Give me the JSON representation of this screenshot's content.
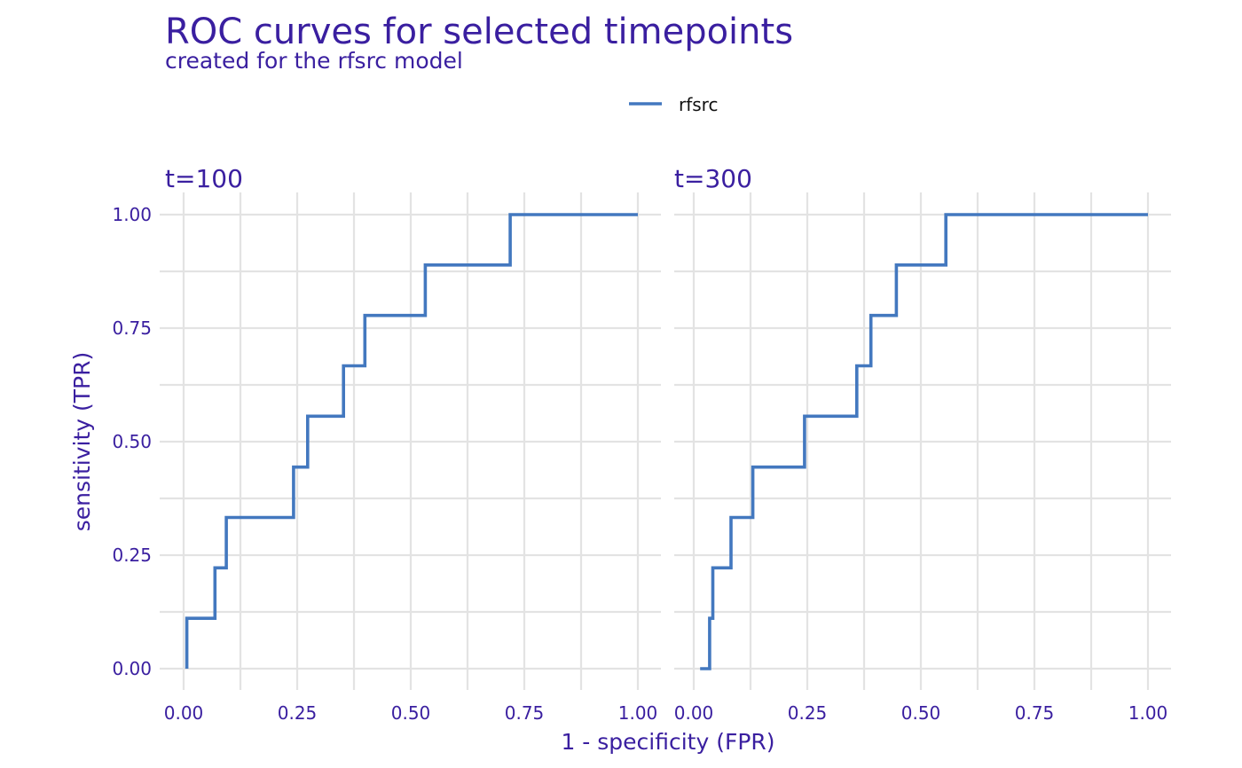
{
  "chart_data": {
    "type": "line",
    "title": "ROC curves for selected timepoints",
    "subtitle": "created for the rfsrc model",
    "xlabel": "1 - specificity (FPR)",
    "ylabel": "sensitivity (TPR)",
    "xlim": [
      0,
      1
    ],
    "ylim": [
      0,
      1
    ],
    "x_ticks": [
      "0.00",
      "0.25",
      "0.50",
      "0.75",
      "1.00"
    ],
    "y_ticks": [
      "0.00",
      "0.25",
      "0.50",
      "0.75",
      "1.00"
    ],
    "grid": true,
    "legend_position": "top",
    "legend": [
      {
        "name": "rfsrc",
        "color": "#4378bf"
      }
    ],
    "panels": [
      {
        "label": "t=100",
        "series": [
          {
            "name": "rfsrc",
            "color": "#4378bf",
            "points": [
              [
                0.007,
                0.0
              ],
              [
                0.007,
                0.111
              ],
              [
                0.069,
                0.111
              ],
              [
                0.069,
                0.222
              ],
              [
                0.094,
                0.222
              ],
              [
                0.094,
                0.333
              ],
              [
                0.242,
                0.333
              ],
              [
                0.242,
                0.444
              ],
              [
                0.273,
                0.444
              ],
              [
                0.273,
                0.556
              ],
              [
                0.352,
                0.556
              ],
              [
                0.352,
                0.667
              ],
              [
                0.399,
                0.667
              ],
              [
                0.399,
                0.778
              ],
              [
                0.532,
                0.778
              ],
              [
                0.532,
                0.889
              ],
              [
                0.719,
                0.889
              ],
              [
                0.719,
                1.0
              ],
              [
                1.0,
                1.0
              ]
            ]
          }
        ]
      },
      {
        "label": "t=300",
        "series": [
          {
            "name": "rfsrc",
            "color": "#4378bf",
            "points": [
              [
                0.014,
                0.0
              ],
              [
                0.035,
                0.0
              ],
              [
                0.035,
                0.111
              ],
              [
                0.042,
                0.111
              ],
              [
                0.042,
                0.222
              ],
              [
                0.082,
                0.222
              ],
              [
                0.082,
                0.333
              ],
              [
                0.13,
                0.333
              ],
              [
                0.13,
                0.444
              ],
              [
                0.244,
                0.444
              ],
              [
                0.244,
                0.556
              ],
              [
                0.359,
                0.556
              ],
              [
                0.359,
                0.667
              ],
              [
                0.39,
                0.667
              ],
              [
                0.39,
                0.778
              ],
              [
                0.446,
                0.778
              ],
              [
                0.446,
                0.889
              ],
              [
                0.555,
                0.889
              ],
              [
                0.555,
                1.0
              ],
              [
                1.0,
                1.0
              ]
            ]
          }
        ]
      }
    ]
  }
}
